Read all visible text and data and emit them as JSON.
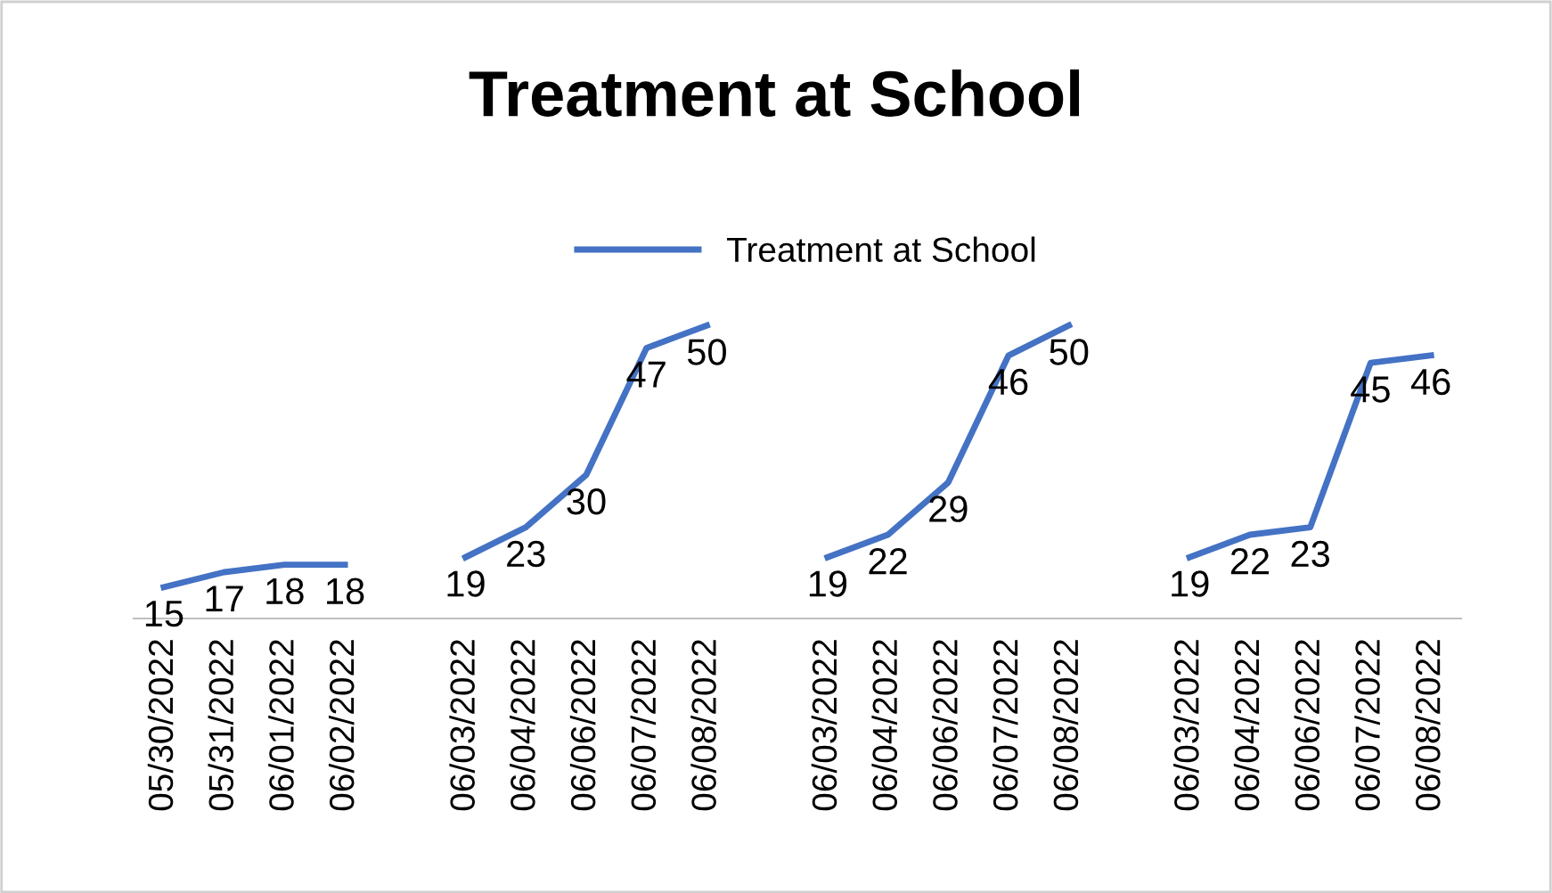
{
  "chart_data": {
    "type": "line",
    "title": "Treatment at School",
    "categories": [
      "05/30/2022",
      "05/31/2022",
      "06/01/2022",
      "06/02/2022",
      null,
      "06/03/2022",
      "06/04/2022",
      "06/06/2022",
      "06/07/2022",
      "06/08/2022",
      null,
      "06/03/2022",
      "06/04/2022",
      "06/06/2022",
      "06/07/2022",
      "06/08/2022",
      null,
      "06/03/2022",
      "06/04/2022",
      "06/06/2022",
      "06/07/2022",
      "06/08/2022"
    ],
    "series": [
      {
        "name": "Treatment at School",
        "color": "#4472c4",
        "values": [
          15,
          17,
          18,
          18,
          null,
          19,
          23,
          30,
          47,
          50,
          null,
          19,
          22,
          29,
          46,
          50,
          null,
          19,
          22,
          23,
          45,
          46
        ]
      }
    ],
    "data_labels": true,
    "legend": "top",
    "grid": false,
    "marker": "none",
    "line_style": "solid"
  }
}
